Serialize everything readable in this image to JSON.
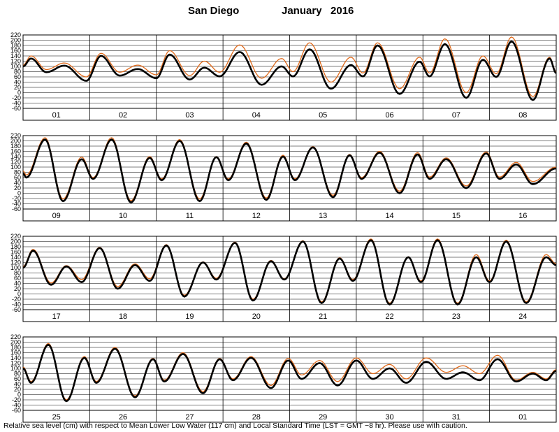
{
  "title": {
    "location": "San Diego",
    "month_year": "January   2016"
  },
  "footer": "Relative sea level (cm) with respect to Mean Lower Low Water (117 cm) and Local Standard Time (LST = GMT −8 hr). Please use with caution.",
  "colors": {
    "observed": "#000000",
    "predicted": "#e06a1b",
    "grid": "#000000",
    "background": "#ffffff"
  },
  "chart_data": {
    "type": "line",
    "ylim": [
      -60,
      220
    ],
    "yticks": [
      220,
      200,
      180,
      160,
      140,
      120,
      100,
      80,
      60,
      40,
      20,
      0,
      -20,
      -40,
      -60
    ],
    "grid": true,
    "series_names_printed": false,
    "panels": [
      {
        "days": [
          "01",
          "02",
          "03",
          "04",
          "05",
          "06",
          "07",
          "08"
        ],
        "observed": {
          "extrema": [
            [
              0.0,
              100
            ],
            [
              0.12,
              130
            ],
            [
              0.35,
              78
            ],
            [
              0.62,
              103
            ],
            [
              0.95,
              45
            ],
            [
              1.17,
              140
            ],
            [
              1.45,
              65
            ],
            [
              1.72,
              90
            ],
            [
              2.0,
              55
            ],
            [
              2.2,
              145
            ],
            [
              2.5,
              50
            ],
            [
              2.72,
              95
            ],
            [
              2.95,
              62
            ],
            [
              3.25,
              155
            ],
            [
              3.58,
              30
            ],
            [
              3.88,
              100
            ],
            [
              4.05,
              62
            ],
            [
              4.3,
              165
            ],
            [
              4.62,
              15
            ],
            [
              4.92,
              105
            ],
            [
              5.1,
              62
            ],
            [
              5.32,
              180
            ],
            [
              5.65,
              -5
            ],
            [
              5.95,
              118
            ],
            [
              6.1,
              62
            ],
            [
              6.33,
              185
            ],
            [
              6.65,
              -20
            ],
            [
              6.9,
              125
            ],
            [
              7.1,
              60
            ],
            [
              7.33,
              195
            ],
            [
              7.65,
              -28
            ],
            [
              7.9,
              130
            ],
            [
              8.0,
              75
            ]
          ]
        },
        "predicted": {
          "extrema": [
            [
              0.0,
              105
            ],
            [
              0.12,
              140
            ],
            [
              0.35,
              88
            ],
            [
              0.62,
              113
            ],
            [
              0.95,
              60
            ],
            [
              1.17,
              150
            ],
            [
              1.45,
              78
            ],
            [
              1.72,
              105
            ],
            [
              2.0,
              68
            ],
            [
              2.2,
              160
            ],
            [
              2.5,
              65
            ],
            [
              2.72,
              120
            ],
            [
              2.95,
              78
            ],
            [
              3.25,
              182
            ],
            [
              3.58,
              55
            ],
            [
              3.88,
              130
            ],
            [
              4.05,
              80
            ],
            [
              4.3,
              190
            ],
            [
              4.62,
              40
            ],
            [
              4.92,
              135
            ],
            [
              5.1,
              75
            ],
            [
              5.32,
              190
            ],
            [
              5.65,
              15
            ],
            [
              5.95,
              135
            ],
            [
              6.1,
              75
            ],
            [
              6.33,
              205
            ],
            [
              6.65,
              0
            ],
            [
              6.9,
              140
            ],
            [
              7.1,
              72
            ],
            [
              7.33,
              212
            ],
            [
              7.65,
              -15
            ],
            [
              7.9,
              135
            ],
            [
              8.0,
              80
            ]
          ]
        }
      },
      {
        "days": [
          "09",
          "10",
          "11",
          "12",
          "13",
          "14",
          "15",
          "16"
        ],
        "observed": {
          "extrema": [
            [
              0.0,
              75
            ],
            [
              0.05,
              60
            ],
            [
              0.33,
              205
            ],
            [
              0.6,
              -30
            ],
            [
              0.88,
              130
            ],
            [
              1.05,
              55
            ],
            [
              1.33,
              205
            ],
            [
              1.62,
              -35
            ],
            [
              1.9,
              135
            ],
            [
              2.08,
              50
            ],
            [
              2.35,
              200
            ],
            [
              2.65,
              -30
            ],
            [
              2.9,
              138
            ],
            [
              3.08,
              50
            ],
            [
              3.35,
              190
            ],
            [
              3.65,
              -25
            ],
            [
              3.9,
              140
            ],
            [
              4.08,
              50
            ],
            [
              4.35,
              175
            ],
            [
              4.65,
              -15
            ],
            [
              4.9,
              145
            ],
            [
              5.08,
              55
            ],
            [
              5.35,
              155
            ],
            [
              5.65,
              0
            ],
            [
              5.92,
              148
            ],
            [
              6.1,
              55
            ],
            [
              6.35,
              130
            ],
            [
              6.65,
              20
            ],
            [
              6.95,
              152
            ],
            [
              7.15,
              55
            ],
            [
              7.4,
              110
            ],
            [
              7.65,
              35
            ],
            [
              8.0,
              95
            ]
          ]
        },
        "predicted": {
          "extrema": [
            [
              0.0,
              85
            ],
            [
              0.05,
              70
            ],
            [
              0.33,
              212
            ],
            [
              0.6,
              -22
            ],
            [
              0.88,
              138
            ],
            [
              1.05,
              60
            ],
            [
              1.33,
              212
            ],
            [
              1.62,
              -28
            ],
            [
              1.9,
              140
            ],
            [
              2.08,
              55
            ],
            [
              2.35,
              205
            ],
            [
              2.65,
              -22
            ],
            [
              2.9,
              140
            ],
            [
              3.08,
              55
            ],
            [
              3.35,
              195
            ],
            [
              3.65,
              -18
            ],
            [
              3.9,
              145
            ],
            [
              4.08,
              55
            ],
            [
              4.35,
              178
            ],
            [
              4.65,
              -8
            ],
            [
              4.9,
              148
            ],
            [
              5.08,
              60
            ],
            [
              5.35,
              160
            ],
            [
              5.65,
              8
            ],
            [
              5.92,
              155
            ],
            [
              6.1,
              62
            ],
            [
              6.35,
              135
            ],
            [
              6.65,
              28
            ],
            [
              6.95,
              158
            ],
            [
              7.15,
              62
            ],
            [
              7.4,
              118
            ],
            [
              7.65,
              45
            ],
            [
              8.0,
              100
            ]
          ]
        }
      },
      {
        "days": [
          "17",
          "18",
          "19",
          "20",
          "21",
          "22",
          "23",
          "24"
        ],
        "observed": {
          "extrema": [
            [
              0.0,
              100
            ],
            [
              0.15,
              165
            ],
            [
              0.42,
              35
            ],
            [
              0.65,
              105
            ],
            [
              0.88,
              45
            ],
            [
              1.15,
              175
            ],
            [
              1.42,
              20
            ],
            [
              1.68,
              110
            ],
            [
              1.9,
              50
            ],
            [
              2.15,
              185
            ],
            [
              2.42,
              -10
            ],
            [
              2.7,
              120
            ],
            [
              2.9,
              55
            ],
            [
              3.18,
              195
            ],
            [
              3.45,
              -25
            ],
            [
              3.72,
              125
            ],
            [
              3.92,
              55
            ],
            [
              4.2,
              200
            ],
            [
              4.48,
              -35
            ],
            [
              4.75,
              135
            ],
            [
              4.95,
              50
            ],
            [
              5.22,
              205
            ],
            [
              5.5,
              -40
            ],
            [
              5.78,
              140
            ],
            [
              5.97,
              45
            ],
            [
              6.22,
              205
            ],
            [
              6.52,
              -40
            ],
            [
              6.8,
              140
            ],
            [
              7.0,
              45
            ],
            [
              7.25,
              200
            ],
            [
              7.55,
              -35
            ],
            [
              7.85,
              140
            ],
            [
              8.0,
              110
            ]
          ]
        },
        "predicted": {
          "extrema": [
            [
              0.0,
              105
            ],
            [
              0.15,
              170
            ],
            [
              0.42,
              42
            ],
            [
              0.65,
              108
            ],
            [
              0.88,
              55
            ],
            [
              1.15,
              178
            ],
            [
              1.42,
              28
            ],
            [
              1.68,
              115
            ],
            [
              1.9,
              58
            ],
            [
              2.15,
              188
            ],
            [
              2.42,
              -5
            ],
            [
              2.7,
              122
            ],
            [
              2.9,
              60
            ],
            [
              3.18,
              198
            ],
            [
              3.45,
              -20
            ],
            [
              3.72,
              128
            ],
            [
              3.92,
              58
            ],
            [
              4.2,
              203
            ],
            [
              4.48,
              -30
            ],
            [
              4.75,
              138
            ],
            [
              4.95,
              55
            ],
            [
              5.22,
              210
            ],
            [
              5.5,
              -35
            ],
            [
              5.78,
              142
            ],
            [
              5.97,
              50
            ],
            [
              6.22,
              210
            ],
            [
              6.52,
              -35
            ],
            [
              6.8,
              150
            ],
            [
              7.0,
              50
            ],
            [
              7.25,
              205
            ],
            [
              7.55,
              -30
            ],
            [
              7.85,
              150
            ],
            [
              8.0,
              115
            ]
          ]
        }
      },
      {
        "days": [
          "25",
          "26",
          "27",
          "28",
          "29",
          "30",
          "31",
          "01"
        ],
        "observed": {
          "extrema": [
            [
              0.0,
              100
            ],
            [
              0.12,
              45
            ],
            [
              0.38,
              190
            ],
            [
              0.65,
              -25
            ],
            [
              0.92,
              140
            ],
            [
              1.1,
              45
            ],
            [
              1.38,
              175
            ],
            [
              1.68,
              -10
            ],
            [
              1.95,
              135
            ],
            [
              2.12,
              50
            ],
            [
              2.4,
              155
            ],
            [
              2.7,
              5
            ],
            [
              2.95,
              135
            ],
            [
              3.15,
              55
            ],
            [
              3.42,
              140
            ],
            [
              3.72,
              25
            ],
            [
              3.98,
              130
            ],
            [
              4.18,
              60
            ],
            [
              4.45,
              120
            ],
            [
              4.72,
              35
            ],
            [
              5.0,
              130
            ],
            [
              5.25,
              60
            ],
            [
              5.5,
              100
            ],
            [
              5.75,
              45
            ],
            [
              6.05,
              125
            ],
            [
              6.35,
              60
            ],
            [
              6.6,
              85
            ],
            [
              6.85,
              55
            ],
            [
              7.12,
              135
            ],
            [
              7.4,
              50
            ],
            [
              7.65,
              80
            ],
            [
              7.85,
              55
            ],
            [
              8.0,
              90
            ]
          ]
        },
        "predicted": {
          "extrema": [
            [
              0.0,
              105
            ],
            [
              0.12,
              50
            ],
            [
              0.38,
              195
            ],
            [
              0.65,
              -20
            ],
            [
              0.92,
              145
            ],
            [
              1.1,
              50
            ],
            [
              1.38,
              180
            ],
            [
              1.68,
              -5
            ],
            [
              1.95,
              138
            ],
            [
              2.12,
              55
            ],
            [
              2.4,
              160
            ],
            [
              2.7,
              12
            ],
            [
              2.95,
              138
            ],
            [
              3.15,
              60
            ],
            [
              3.42,
              145
            ],
            [
              3.72,
              35
            ],
            [
              3.98,
              138
            ],
            [
              4.18,
              75
            ],
            [
              4.45,
              130
            ],
            [
              4.72,
              50
            ],
            [
              5.0,
              140
            ],
            [
              5.25,
              80
            ],
            [
              5.5,
              115
            ],
            [
              5.75,
              60
            ],
            [
              6.05,
              140
            ],
            [
              6.35,
              85
            ],
            [
              6.6,
              110
            ],
            [
              6.85,
              80
            ],
            [
              7.12,
              150
            ],
            [
              7.4,
              55
            ],
            [
              7.65,
              85
            ],
            [
              7.85,
              60
            ],
            [
              8.0,
              95
            ]
          ]
        }
      }
    ]
  }
}
